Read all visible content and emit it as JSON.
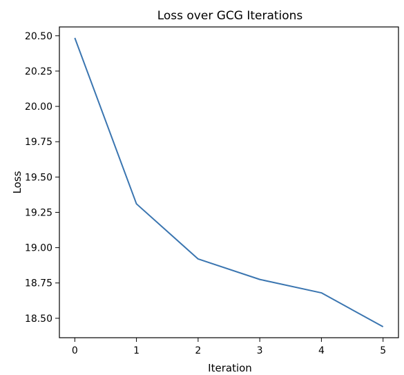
{
  "chart_data": {
    "type": "line",
    "title": "Loss over GCG Iterations",
    "xlabel": "Iteration",
    "ylabel": "Loss",
    "x": [
      0,
      1,
      2,
      3,
      4,
      5
    ],
    "series": [
      {
        "values": [
          20.485,
          19.31,
          18.92,
          18.775,
          18.68,
          18.44
        ],
        "color": "#3a75b0"
      }
    ],
    "xticks": [
      0,
      1,
      2,
      3,
      4,
      5
    ],
    "yticks": [
      "18.50",
      "18.75",
      "19.00",
      "19.25",
      "19.50",
      "19.75",
      "20.00",
      "20.25",
      "20.50"
    ],
    "xlim": [
      -0.25,
      5.25
    ],
    "ylim": [
      18.3625,
      20.5625
    ],
    "grid": false,
    "legend": "none"
  }
}
